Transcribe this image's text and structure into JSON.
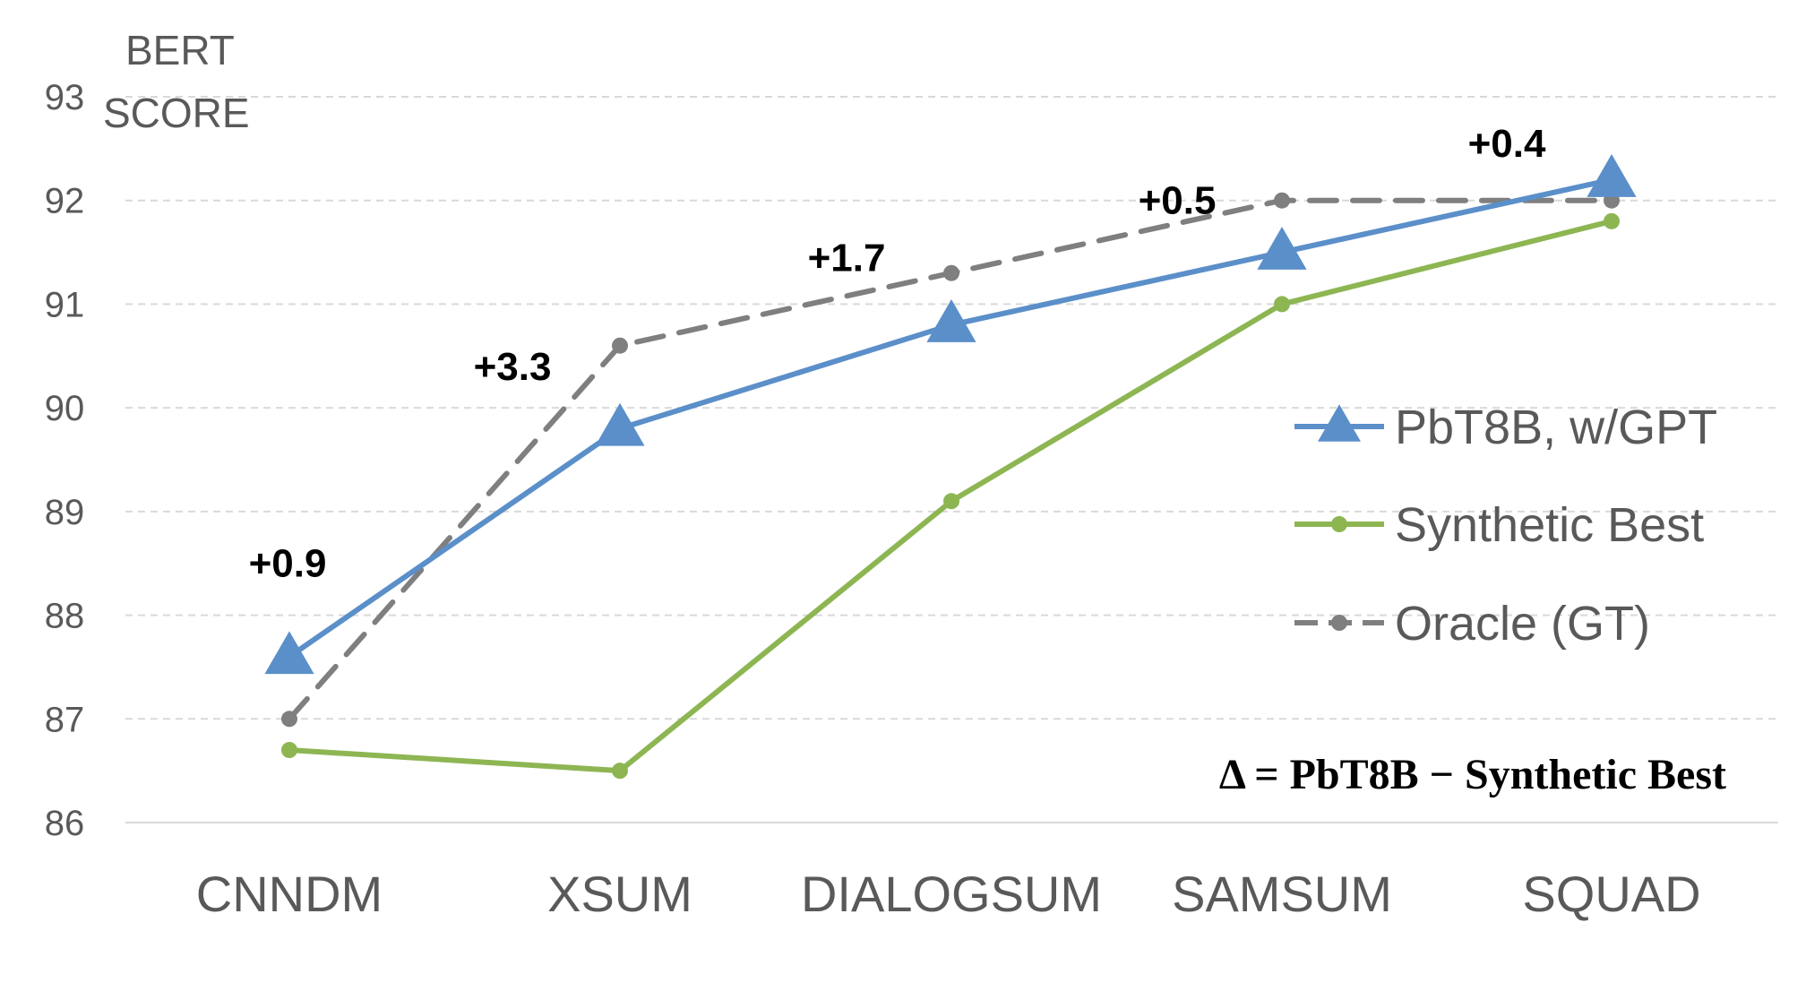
{
  "chart_data": {
    "type": "line",
    "ylabel_lines": [
      "BERT",
      "SCORE"
    ],
    "xlabel": "",
    "categories": [
      "CNNDM",
      "XSUM",
      "DIALOGSUM",
      "SAMSUM",
      "SQUAD"
    ],
    "ylim": [
      86,
      93
    ],
    "yticks": [
      86,
      87,
      88,
      89,
      90,
      91,
      92,
      93
    ],
    "grid": "horizontal dashed",
    "legend_position": "right-middle",
    "series": [
      {
        "name": "PbT8B, w/GPT",
        "values": [
          87.6,
          89.8,
          90.8,
          91.5,
          92.2
        ],
        "color": "#5B8FC9",
        "marker": "triangle",
        "dash": "solid"
      },
      {
        "name": "Synthetic Best",
        "values": [
          86.7,
          86.5,
          89.1,
          91.0,
          91.8
        ],
        "color": "#8DB653",
        "marker": "circle",
        "dash": "solid"
      },
      {
        "name": "Oracle (GT)",
        "values": [
          87.0,
          90.6,
          91.3,
          92.0,
          92.0
        ],
        "color": "#7F7F7F",
        "marker": "circle",
        "dash": "dashed"
      }
    ],
    "annotations": [
      {
        "text": "+0.9",
        "category": "CNNDM",
        "y": 88.5
      },
      {
        "text": "+3.3",
        "category": "XSUM",
        "y": 90.4
      },
      {
        "text": "+1.7",
        "category": "DIALOGSUM",
        "y": 91.45
      },
      {
        "text": "+0.5",
        "category": "SAMSUM",
        "y": 92.0
      },
      {
        "text": "+0.4",
        "category": "SQUAD",
        "y": 92.55
      }
    ],
    "formula": "Δ = PbT8B − Synthetic Best"
  }
}
